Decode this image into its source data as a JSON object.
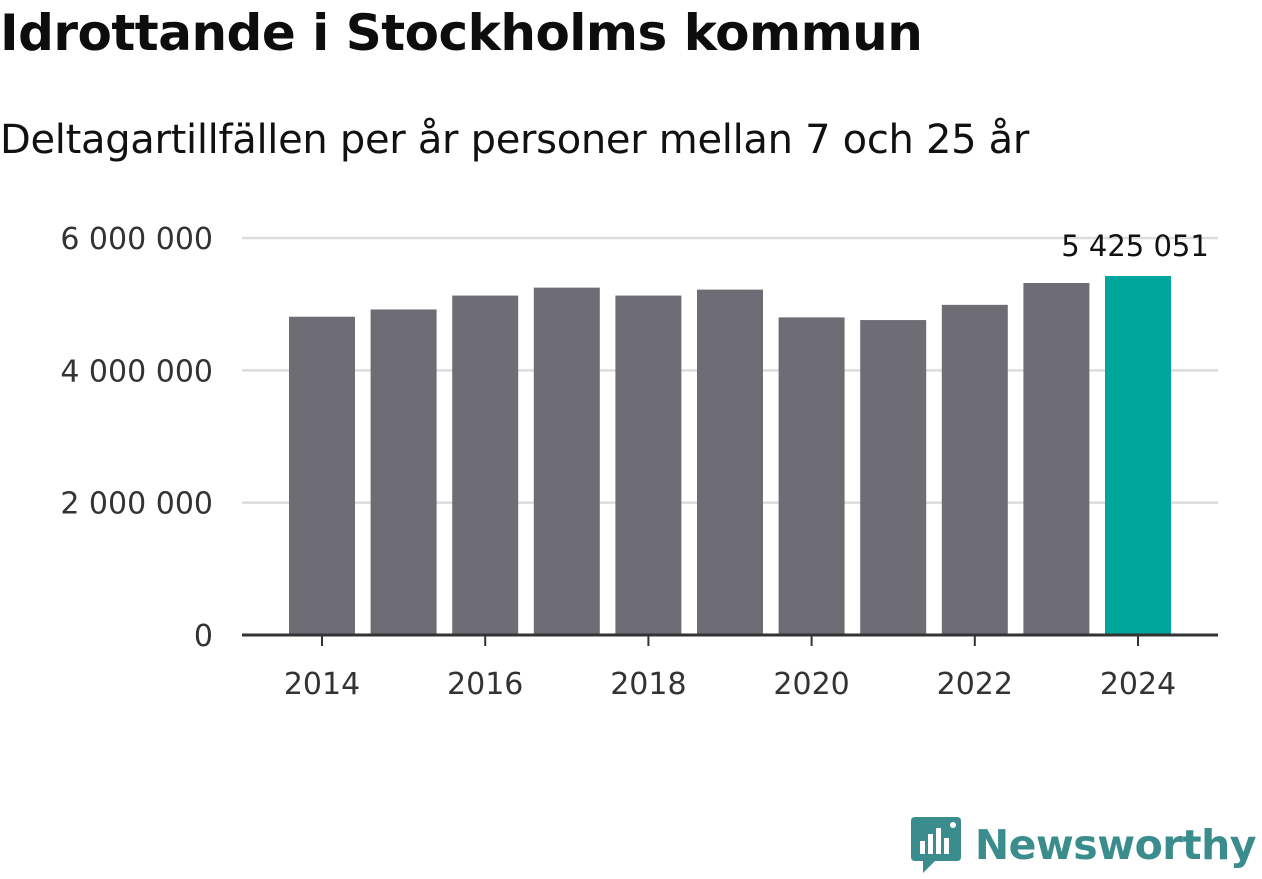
{
  "header": {
    "title": "Idrottande i Stockholms kommun",
    "subtitle": "Deltagartillfällen per år personer mellan 7 och 25 år"
  },
  "brand": {
    "name": "Newsworthy",
    "icon": "bar-chart-speech-bubble-icon"
  },
  "colors": {
    "bar": "#6e6d75",
    "highlight": "#00a59b",
    "grid": "#dcdcdc",
    "axis": "#333333",
    "brand": "#3a8d8c"
  },
  "chart_data": {
    "type": "bar",
    "categories": [
      "2014",
      "2015",
      "2016",
      "2017",
      "2018",
      "2019",
      "2020",
      "2021",
      "2022",
      "2023",
      "2024"
    ],
    "values": [
      4810000,
      4920000,
      5130000,
      5250000,
      5130000,
      5220000,
      4800000,
      4760000,
      4990000,
      5320000,
      5425051
    ],
    "highlight_index": 10,
    "highlight_label": "5 425 051",
    "y_ticks": [
      0,
      2000000,
      4000000,
      6000000
    ],
    "y_tick_labels": [
      "0",
      "2 000 000",
      "4 000 000",
      "6 000 000"
    ],
    "x_tick_labels": [
      "2014",
      "2016",
      "2018",
      "2020",
      "2022",
      "2024"
    ],
    "ylim": [
      0,
      6000000
    ],
    "title": "Idrottande i Stockholms kommun",
    "subtitle": "Deltagartillfällen per år personer mellan 7 och 25 år",
    "xlabel": "",
    "ylabel": "",
    "grid": true
  }
}
